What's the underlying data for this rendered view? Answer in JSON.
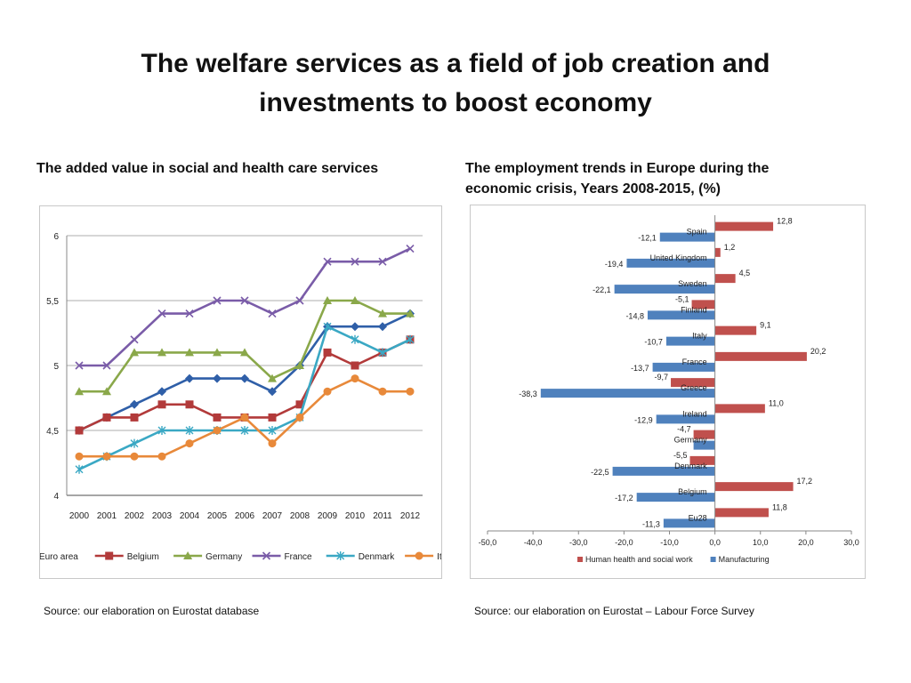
{
  "title_line1": "The welfare services as a field of job creation and",
  "title_line2": "investments to boost economy",
  "left": {
    "subtitle": "The added value in social and health care services",
    "source": "Source: our elaboration on Eurostat database"
  },
  "right": {
    "subtitle_line1": "The employment trends in Europe during the",
    "subtitle_line2": "economic crisis, Years 2008-2015, (%)",
    "source": "Source: our elaboration on Eurostat – Labour Force Survey"
  },
  "chart_data": [
    {
      "type": "line",
      "title": "The added value in social and health care services",
      "x": [
        "2000",
        "2001",
        "2002",
        "2003",
        "2004",
        "2005",
        "2006",
        "2007",
        "2008",
        "2009",
        "2010",
        "2011",
        "2012"
      ],
      "ylim": [
        4,
        6
      ],
      "yticks": [
        "4",
        "4,5",
        "5",
        "5,5",
        "6"
      ],
      "ytick_values": [
        4,
        4.5,
        5,
        5.5,
        6
      ],
      "grid": true,
      "legend_position": "bottom",
      "series": [
        {
          "name": "Euro area",
          "color": "#2f5fa8",
          "marker": "diamond",
          "values": [
            4.5,
            4.6,
            4.7,
            4.8,
            4.9,
            4.9,
            4.9,
            4.8,
            5.0,
            5.3,
            5.3,
            5.3,
            5.4
          ]
        },
        {
          "name": "Belgium",
          "color": "#b23a3a",
          "marker": "square",
          "values": [
            4.5,
            4.6,
            4.6,
            4.7,
            4.7,
            4.6,
            4.6,
            4.6,
            4.7,
            5.1,
            5.0,
            5.1,
            5.2
          ]
        },
        {
          "name": "Germany",
          "color": "#8aa84a",
          "marker": "triangle",
          "values": [
            4.8,
            4.8,
            5.1,
            5.1,
            5.1,
            5.1,
            5.1,
            4.9,
            5.0,
            5.5,
            5.5,
            5.4,
            5.4
          ]
        },
        {
          "name": "France",
          "color": "#7a5ca8",
          "marker": "x",
          "values": [
            5.0,
            5.0,
            5.2,
            5.4,
            5.4,
            5.5,
            5.5,
            5.4,
            5.5,
            5.8,
            5.8,
            5.8,
            5.9
          ]
        },
        {
          "name": "Denmark",
          "color": "#3aa8c4",
          "marker": "star",
          "values": [
            4.2,
            4.3,
            4.4,
            4.5,
            4.5,
            4.5,
            4.5,
            4.5,
            4.6,
            5.3,
            5.2,
            5.1,
            5.2
          ]
        },
        {
          "name": "Italy",
          "color": "#e8893a",
          "marker": "circle",
          "values": [
            4.3,
            4.3,
            4.3,
            4.3,
            4.4,
            4.5,
            4.6,
            4.4,
            4.6,
            4.8,
            4.9,
            4.8,
            4.8
          ]
        }
      ]
    },
    {
      "type": "bar",
      "orientation": "horizontal",
      "title": "The employment trends in Europe during the economic crisis, Years 2008-2015, (%)",
      "categories": [
        "Spain",
        "United Kingdom",
        "Sweden",
        "Finland",
        "Italy",
        "France",
        "Greece",
        "Ireland",
        "Germany",
        "Denmark",
        "Belgium",
        "Eu28"
      ],
      "xlim": [
        -50,
        30
      ],
      "xticks": [
        "-50,0",
        "-40,0",
        "-30,0",
        "-20,0",
        "-10,0",
        "0,0",
        "10,0",
        "20,0",
        "30,0"
      ],
      "xtick_values": [
        -50,
        -40,
        -30,
        -20,
        -10,
        0,
        10,
        20,
        30
      ],
      "grid": false,
      "legend_position": "bottom",
      "series": [
        {
          "name": "Human health and social work",
          "color": "#c0504d",
          "values": [
            12.8,
            1.2,
            4.5,
            -5.1,
            9.1,
            20.2,
            -9.7,
            11.0,
            -4.7,
            -5.5,
            17.2,
            11.8
          ],
          "labels": [
            "12,8",
            "1,2",
            "4,5",
            "-5,1",
            "9,1",
            "20,2",
            "-9,7",
            "11,0",
            "-4,7",
            "-5,5",
            "17,2",
            "11,8"
          ]
        },
        {
          "name": "Manufacturing",
          "color": "#4f81bd",
          "values": [
            -12.1,
            -19.4,
            -22.1,
            -14.8,
            -10.7,
            -13.7,
            -38.3,
            -12.9,
            -4.7,
            -22.5,
            -17.2,
            -11.3
          ],
          "labels": [
            "-12,1",
            "-19,4",
            "-22,1",
            "-14,8",
            "-10,7",
            "-13,7",
            "-38,3",
            "-12,9",
            "",
            "-22,5",
            "-17,2",
            "-11,3"
          ]
        }
      ]
    }
  ]
}
